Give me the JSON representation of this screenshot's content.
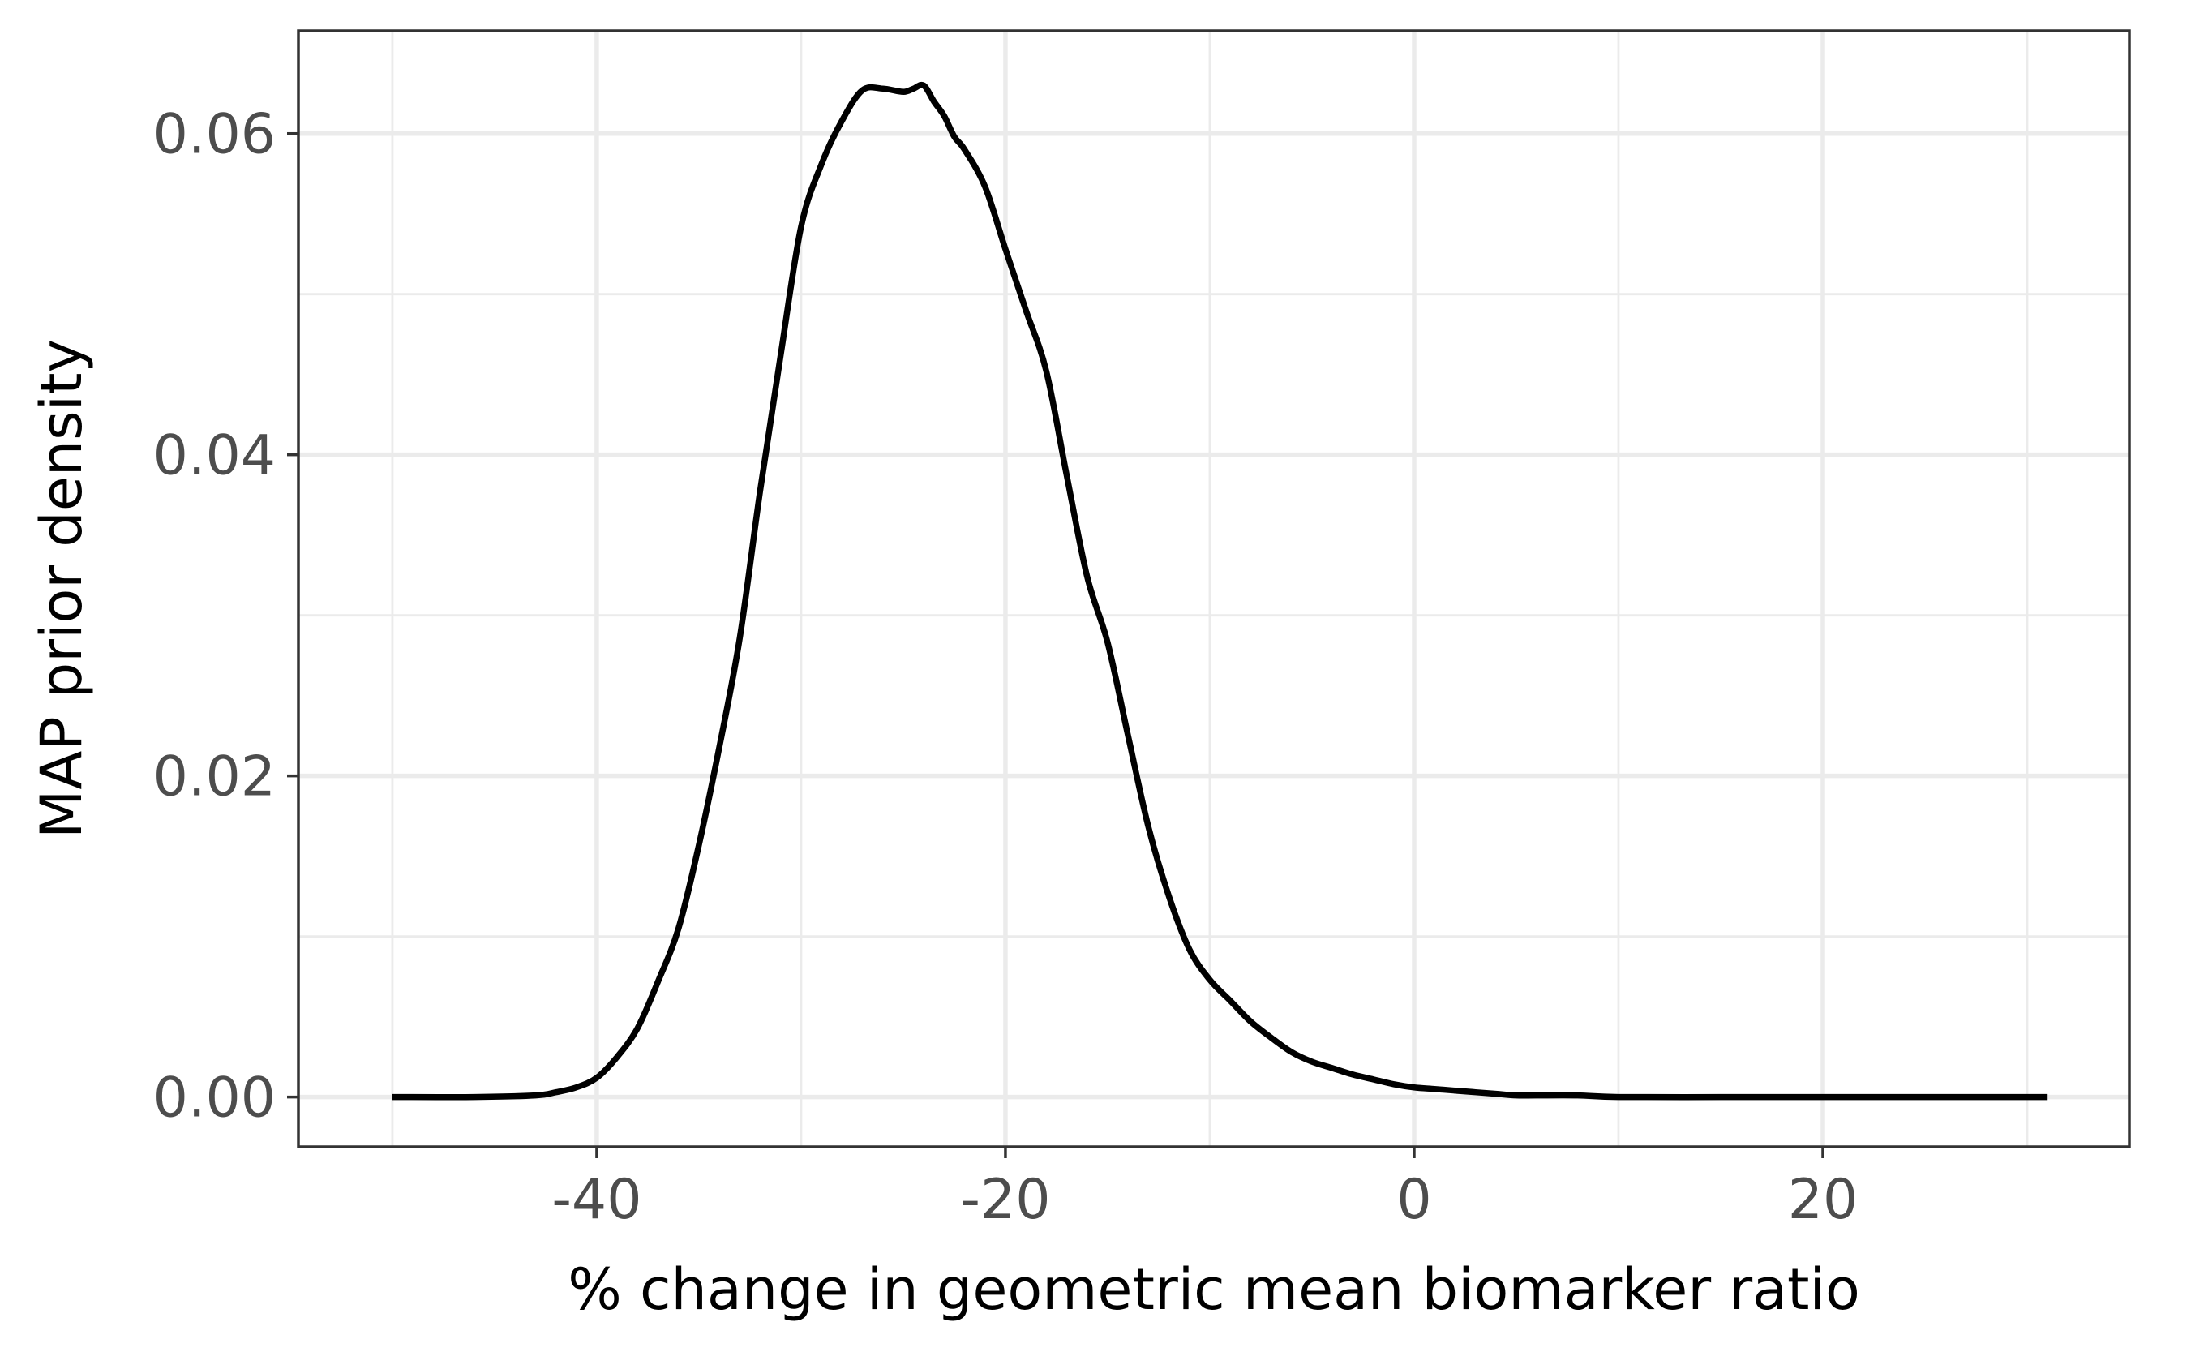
{
  "chart_data": {
    "type": "line",
    "title": "",
    "xlabel": "% change in geometric mean biomarker ratio",
    "ylabel": "MAP prior density",
    "xlim": [
      -54.6,
      35.0
    ],
    "ylim": [
      -0.0031,
      0.0664
    ],
    "x_major_ticks": [
      -40,
      -20,
      0,
      20
    ],
    "x_tick_labels": [
      "-40",
      "-20",
      "0",
      "20"
    ],
    "x_minor_ticks": [
      -50,
      -30,
      -10,
      10,
      30
    ],
    "y_major_ticks": [
      0.0,
      0.02,
      0.04,
      0.06
    ],
    "y_tick_labels": [
      "0.00",
      "0.02",
      "0.04",
      "0.06"
    ],
    "y_minor_ticks": [
      0.01,
      0.03,
      0.05
    ],
    "grid": true,
    "legend": "none",
    "colors": {
      "line": "#000000",
      "grid": "#ebebeb",
      "panel_border": "#333333",
      "tick_text": "#4d4d4d",
      "axis_title": "#000000"
    },
    "series": [
      {
        "x": [
          -50,
          -46,
          -43,
          -42,
          -41,
          -40,
          -39,
          -38,
          -37,
          -36,
          -35,
          -34,
          -33,
          -32,
          -31,
          -30,
          -29,
          -28,
          -27,
          -26,
          -25,
          -24.5,
          -24,
          -23.5,
          -23,
          -22.5,
          -22,
          -21,
          -20,
          -19,
          -18,
          -17,
          -16,
          -15,
          -14,
          -13,
          -12,
          -11,
          -10,
          -9,
          -8,
          -7,
          -6,
          -5,
          -4,
          -3,
          -2,
          -1,
          0,
          1,
          2,
          3,
          4,
          5,
          6,
          8,
          10,
          15,
          20,
          25,
          31
        ],
        "y": [
          0.0,
          0.0,
          0.0001,
          0.0003,
          0.0006,
          0.0012,
          0.0025,
          0.0043,
          0.0072,
          0.0105,
          0.0157,
          0.0218,
          0.0286,
          0.0378,
          0.0462,
          0.0542,
          0.0581,
          0.0608,
          0.0627,
          0.0628,
          0.0626,
          0.0628,
          0.063,
          0.062,
          0.0611,
          0.0598,
          0.059,
          0.0567,
          0.0528,
          0.049,
          0.0452,
          0.0387,
          0.0324,
          0.0283,
          0.0225,
          0.0168,
          0.0125,
          0.0092,
          0.0073,
          0.006,
          0.0047,
          0.0037,
          0.0028,
          0.0022,
          0.0018,
          0.0014,
          0.0011,
          0.0008,
          0.0006,
          0.0005,
          0.0004,
          0.0003,
          0.0002,
          0.0001,
          0.0001,
          0.0001,
          0.0,
          0.0,
          0.0,
          0.0,
          0.0
        ]
      }
    ]
  }
}
